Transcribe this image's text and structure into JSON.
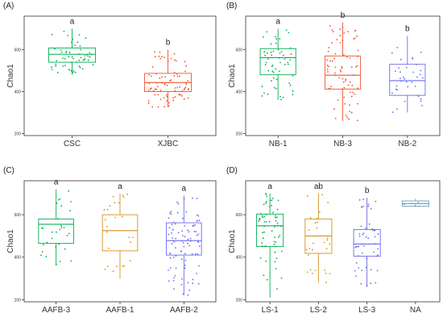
{
  "chart_data": [
    {
      "type": "box",
      "panel_label": "(A)",
      "ylabel": "Chao1",
      "ylim": [
        190,
        760
      ],
      "yticks": [
        200,
        400,
        600
      ],
      "groups": [
        {
          "name": "CSC",
          "color": "#00b050",
          "stats": {
            "min": 480,
            "q1": 540,
            "median": 578,
            "q3": 608,
            "max": 700
          },
          "letter": "a",
          "n": 55
        },
        {
          "name": "XJBC",
          "color": "#f0542d",
          "stats": {
            "min": 325,
            "q1": 400,
            "median": 443,
            "q3": 487,
            "max": 600
          },
          "letter": "b",
          "n": 80
        }
      ]
    },
    {
      "type": "box",
      "panel_label": "(B)",
      "ylabel": "Chao1",
      "ylim": [
        190,
        760
      ],
      "yticks": [
        200,
        400,
        600
      ],
      "groups": [
        {
          "name": "NB-1",
          "color": "#00b050",
          "stats": {
            "min": 360,
            "q1": 480,
            "median": 562,
            "q3": 605,
            "max": 700
          },
          "letter": "a",
          "n": 55
        },
        {
          "name": "NB-3",
          "color": "#f0542d",
          "stats": {
            "min": 260,
            "q1": 412,
            "median": 478,
            "q3": 570,
            "max": 730
          },
          "letter": "b",
          "n": 75
        },
        {
          "name": "NB-2",
          "color": "#6b6bf0",
          "stats": {
            "min": 300,
            "q1": 382,
            "median": 452,
            "q3": 530,
            "max": 665
          },
          "letter": "b",
          "n": 35
        }
      ]
    },
    {
      "type": "box",
      "panel_label": "(C)",
      "ylabel": "Chao1",
      "ylim": [
        190,
        760
      ],
      "yticks": [
        200,
        400,
        600
      ],
      "groups": [
        {
          "name": "AAFB-3",
          "color": "#00b050",
          "stats": {
            "min": 360,
            "q1": 465,
            "median": 555,
            "q3": 580,
            "max": 720
          },
          "letter": "a",
          "n": 30
        },
        {
          "name": "AAFB-1",
          "color": "#d4911e",
          "stats": {
            "min": 300,
            "q1": 430,
            "median": 525,
            "q3": 600,
            "max": 700
          },
          "letter": "a",
          "n": 25
        },
        {
          "name": "AAFB-2",
          "color": "#6b6bf0",
          "stats": {
            "min": 220,
            "q1": 410,
            "median": 478,
            "q3": 562,
            "max": 690
          },
          "letter": "a",
          "n": 90
        }
      ]
    },
    {
      "type": "box",
      "panel_label": "(D)",
      "ylabel": "Chao1",
      "ylim": [
        190,
        760
      ],
      "yticks": [
        200,
        400,
        600
      ],
      "groups": [
        {
          "name": "LS-1",
          "color": "#00b050",
          "stats": {
            "min": 210,
            "q1": 450,
            "median": 548,
            "q3": 603,
            "max": 700
          },
          "letter": "a",
          "n": 60
        },
        {
          "name": "LS-2",
          "color": "#d4911e",
          "stats": {
            "min": 280,
            "q1": 418,
            "median": 500,
            "q3": 580,
            "max": 700
          },
          "letter": "ab",
          "n": 28
        },
        {
          "name": "LS-3",
          "color": "#6b6bf0",
          "stats": {
            "min": 260,
            "q1": 405,
            "median": 462,
            "q3": 530,
            "max": 680
          },
          "letter": "b",
          "n": 50
        },
        {
          "name": "NA",
          "color": "#6aa0b8",
          "stats": {
            "min": 640,
            "q1": 640,
            "median": 652,
            "q3": 665,
            "max": 675
          },
          "letter": "",
          "n": 5
        }
      ]
    }
  ]
}
